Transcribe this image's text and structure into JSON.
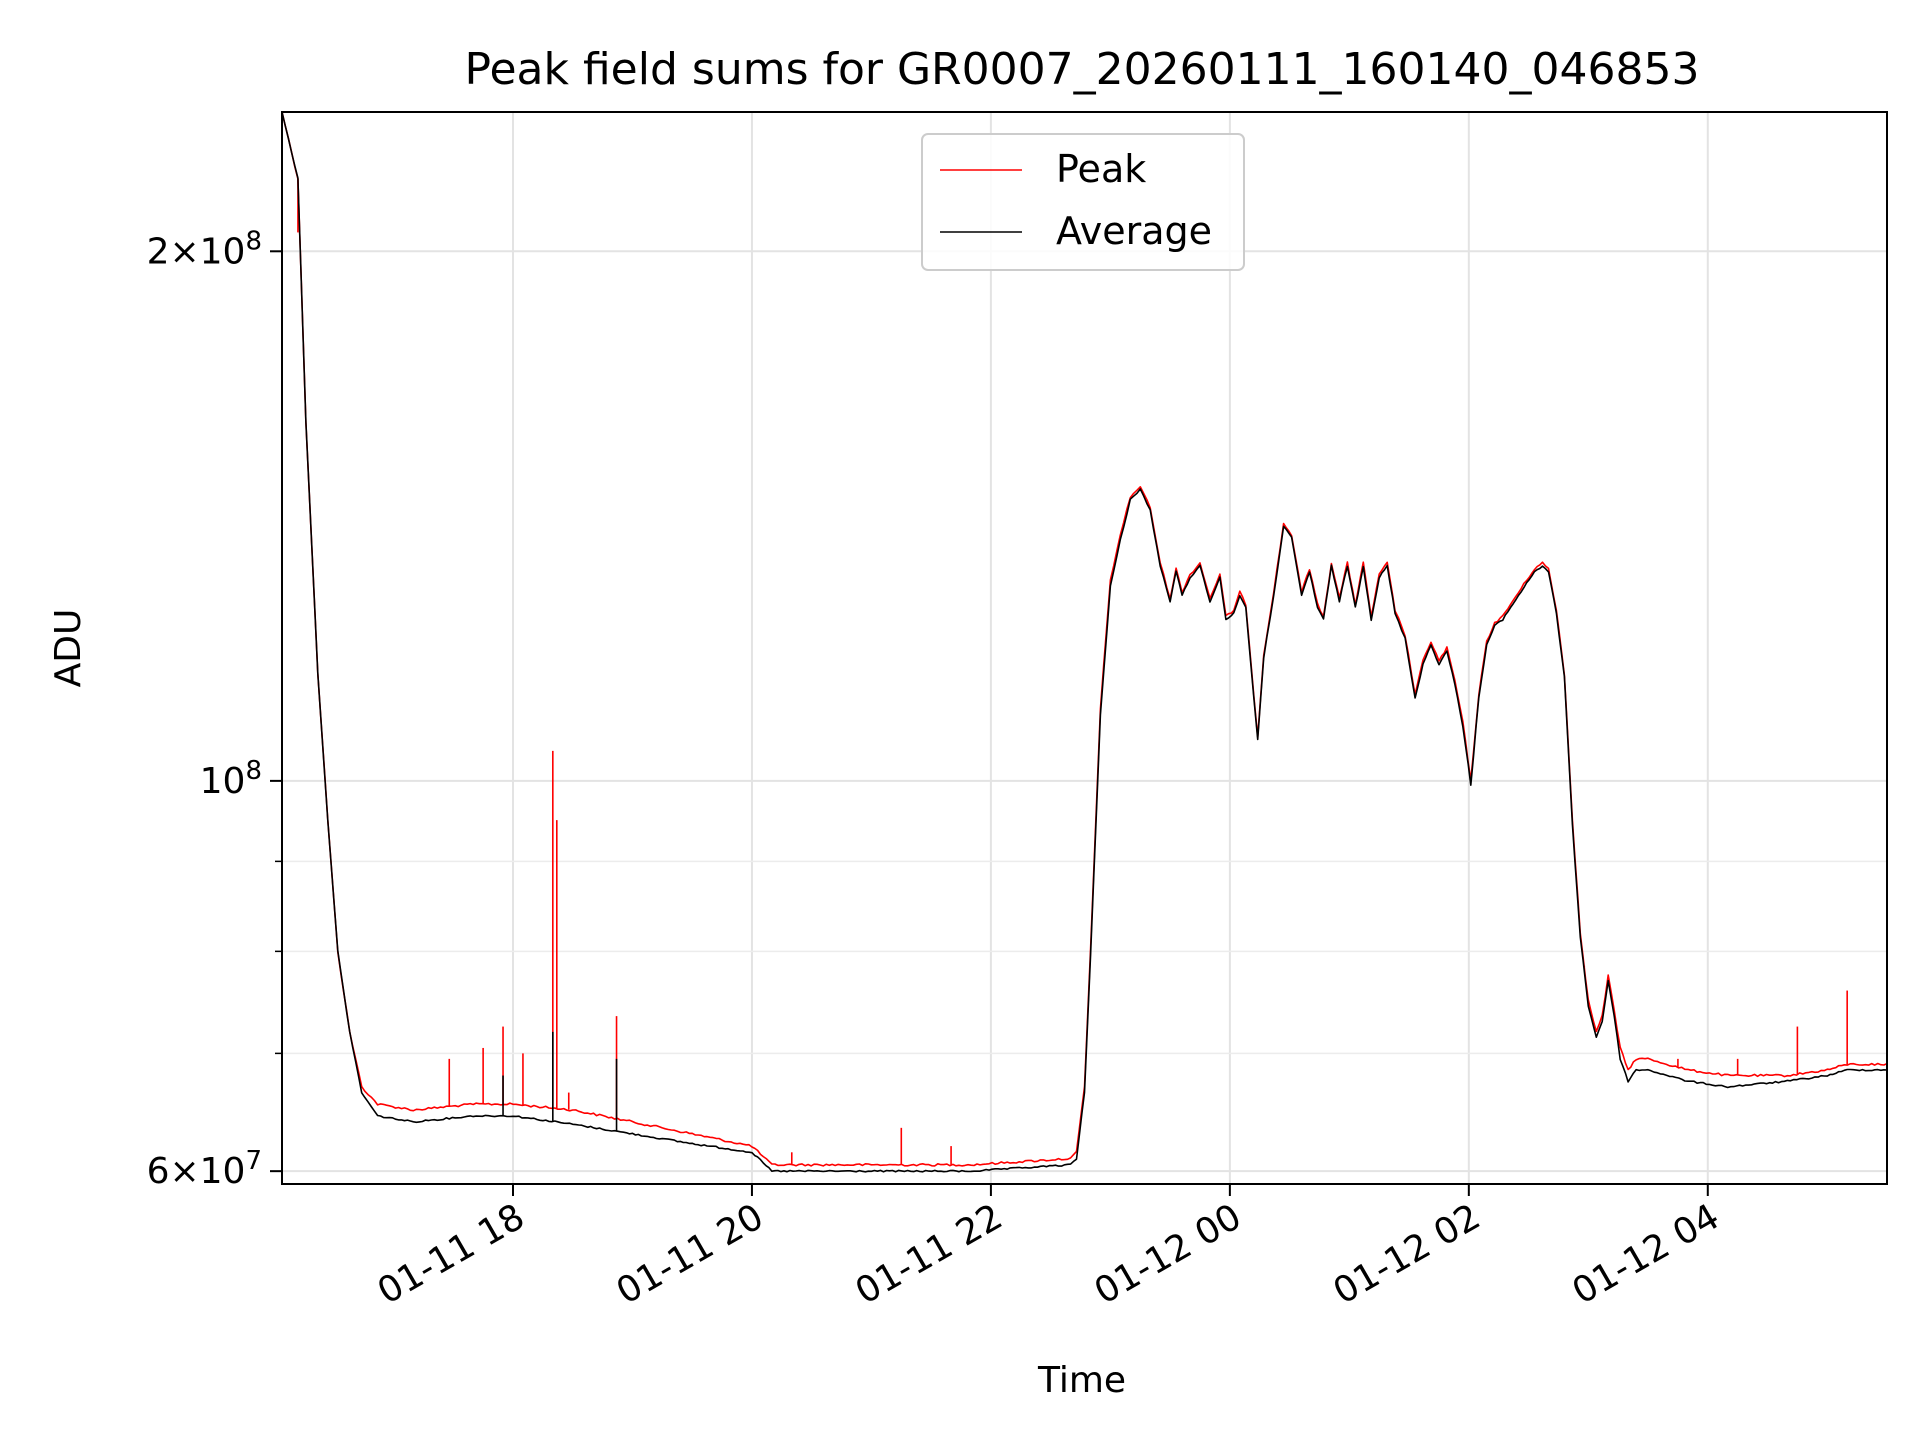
{
  "chart_data": {
    "type": "line",
    "title": "Peak field sums for GR0007_20260111_160140_046853",
    "xlabel": "Time",
    "ylabel": "ADU",
    "yscale": "log",
    "ylim": [
      59000000,
      240000000
    ],
    "xlim": [
      "2026-01-11 16:04",
      "2026-01-12 05:30"
    ],
    "grid": true,
    "legend_position": "top-center",
    "x_ticks": [
      {
        "value": "2026-01-11 18:00",
        "label": "01-11 18"
      },
      {
        "value": "2026-01-11 20:00",
        "label": "01-11 20"
      },
      {
        "value": "2026-01-11 22:00",
        "label": "01-11 22"
      },
      {
        "value": "2026-01-12 00:00",
        "label": "01-12 00"
      },
      {
        "value": "2026-01-12 02:00",
        "label": "01-12 02"
      },
      {
        "value": "2026-01-12 04:00",
        "label": "01-12 04"
      }
    ],
    "y_ticks": [
      {
        "value": 60000000,
        "base": "6",
        "exp": "7"
      },
      {
        "value": 100000000,
        "base": "",
        "exp": "8"
      },
      {
        "value": 200000000,
        "base": "2",
        "exp": "8"
      }
    ],
    "y_minor_ticks": [
      70000000,
      80000000,
      90000000
    ],
    "series": [
      {
        "name": "Peak",
        "color": "#ff0000",
        "base_points": [
          [
            "2026-01-11 16:04",
            240000000
          ],
          [
            "2026-01-11 16:12",
            220000000
          ],
          [
            "2026-01-11 16:16",
            160000000
          ],
          [
            "2026-01-11 16:22",
            115000000
          ],
          [
            "2026-01-11 16:27",
            95000000
          ],
          [
            "2026-01-11 16:32",
            80000000
          ],
          [
            "2026-01-11 16:38",
            72000000
          ],
          [
            "2026-01-11 16:44",
            67000000
          ],
          [
            "2026-01-11 16:52",
            65500000
          ],
          [
            "2026-01-11 17:10",
            65000000
          ],
          [
            "2026-01-11 17:40",
            65500000
          ],
          [
            "2026-01-11 18:00",
            65500000
          ],
          [
            "2026-01-11 18:30",
            65000000
          ],
          [
            "2026-01-11 19:00",
            64000000
          ],
          [
            "2026-01-11 19:30",
            63000000
          ],
          [
            "2026-01-11 20:00",
            62000000
          ],
          [
            "2026-01-11 20:10",
            60500000
          ],
          [
            "2026-01-11 21:00",
            60500000
          ],
          [
            "2026-01-11 21:50",
            60500000
          ],
          [
            "2026-01-11 22:40",
            61000000
          ],
          [
            "2026-01-11 22:43",
            61500000
          ],
          [
            "2026-01-11 22:47",
            67000000
          ],
          [
            "2026-01-11 22:50",
            80000000
          ],
          [
            "2026-01-11 22:55",
            110000000
          ],
          [
            "2026-01-11 23:00",
            130000000
          ],
          [
            "2026-01-11 23:05",
            138000000
          ],
          [
            "2026-01-11 23:10",
            145000000
          ],
          [
            "2026-01-11 23:15",
            147000000
          ],
          [
            "2026-01-11 23:20",
            143000000
          ],
          [
            "2026-01-11 23:25",
            133000000
          ],
          [
            "2026-01-11 23:30",
            127000000
          ],
          [
            "2026-01-11 23:33",
            132000000
          ],
          [
            "2026-01-11 23:36",
            128000000
          ],
          [
            "2026-01-11 23:40",
            131000000
          ],
          [
            "2026-01-11 23:45",
            133000000
          ],
          [
            "2026-01-11 23:50",
            127000000
          ],
          [
            "2026-01-11 23:55",
            131000000
          ],
          [
            "2026-01-11 23:58",
            124000000
          ],
          [
            "2026-01-12 00:02",
            125000000
          ],
          [
            "2026-01-12 00:05",
            128000000
          ],
          [
            "2026-01-12 00:08",
            126000000
          ],
          [
            "2026-01-12 00:12",
            112000000
          ],
          [
            "2026-01-12 00:14",
            106000000
          ],
          [
            "2026-01-12 00:17",
            118000000
          ],
          [
            "2026-01-12 00:22",
            128000000
          ],
          [
            "2026-01-12 00:27",
            140000000
          ],
          [
            "2026-01-12 00:31",
            138000000
          ],
          [
            "2026-01-12 00:36",
            128000000
          ],
          [
            "2026-01-12 00:40",
            132000000
          ],
          [
            "2026-01-12 00:44",
            126000000
          ],
          [
            "2026-01-12 00:47",
            124000000
          ],
          [
            "2026-01-12 00:51",
            133000000
          ],
          [
            "2026-01-12 00:55",
            127000000
          ],
          [
            "2026-01-12 00:59",
            133000000
          ],
          [
            "2026-01-12 01:03",
            126000000
          ],
          [
            "2026-01-12 01:07",
            133000000
          ],
          [
            "2026-01-12 01:11",
            124000000
          ],
          [
            "2026-01-12 01:15",
            131000000
          ],
          [
            "2026-01-12 01:19",
            133000000
          ],
          [
            "2026-01-12 01:23",
            125000000
          ],
          [
            "2026-01-12 01:28",
            121000000
          ],
          [
            "2026-01-12 01:33",
            112000000
          ],
          [
            "2026-01-12 01:37",
            117000000
          ],
          [
            "2026-01-12 01:41",
            120000000
          ],
          [
            "2026-01-12 01:45",
            117000000
          ],
          [
            "2026-01-12 01:49",
            119000000
          ],
          [
            "2026-01-12 01:53",
            114000000
          ],
          [
            "2026-01-12 01:57",
            108000000
          ],
          [
            "2026-01-12 02:01",
            100000000
          ],
          [
            "2026-01-12 02:05",
            112000000
          ],
          [
            "2026-01-12 02:09",
            120000000
          ],
          [
            "2026-01-12 02:13",
            123000000
          ],
          [
            "2026-01-12 02:17",
            124000000
          ],
          [
            "2026-01-12 02:21",
            126000000
          ],
          [
            "2026-01-12 02:25",
            128000000
          ],
          [
            "2026-01-12 02:29",
            130000000
          ],
          [
            "2026-01-12 02:33",
            132000000
          ],
          [
            "2026-01-12 02:37",
            133000000
          ],
          [
            "2026-01-12 02:40",
            132000000
          ],
          [
            "2026-01-12 02:44",
            125000000
          ],
          [
            "2026-01-12 02:48",
            115000000
          ],
          [
            "2026-01-12 02:52",
            95000000
          ],
          [
            "2026-01-12 02:56",
            82000000
          ],
          [
            "2026-01-12 03:00",
            75000000
          ],
          [
            "2026-01-12 03:04",
            72000000
          ],
          [
            "2026-01-12 03:07",
            73500000
          ],
          [
            "2026-01-12 03:10",
            77500000
          ],
          [
            "2026-01-12 03:13",
            74000000
          ],
          [
            "2026-01-12 03:16",
            70500000
          ],
          [
            "2026-01-12 03:20",
            68500000
          ],
          [
            "2026-01-12 03:24",
            69500000
          ],
          [
            "2026-01-12 03:30",
            69500000
          ],
          [
            "2026-01-12 03:50",
            68500000
          ],
          [
            "2026-01-12 04:10",
            68000000
          ],
          [
            "2026-01-12 04:40",
            68000000
          ],
          [
            "2026-01-12 05:00",
            68500000
          ],
          [
            "2026-01-12 05:10",
            69000000
          ],
          [
            "2026-01-12 05:30",
            69000000
          ]
        ],
        "spikes": [
          [
            "2026-01-11 16:12",
            205000000
          ],
          [
            "2026-01-11 17:28",
            69500000
          ],
          [
            "2026-01-11 17:45",
            70500000
          ],
          [
            "2026-01-11 17:55",
            72500000
          ],
          [
            "2026-01-11 18:05",
            70000000
          ],
          [
            "2026-01-11 18:20",
            104000000
          ],
          [
            "2026-01-11 18:22",
            95000000
          ],
          [
            "2026-01-11 18:28",
            66500000
          ],
          [
            "2026-01-11 18:52",
            73500000
          ],
          [
            "2026-01-11 20:20",
            61500000
          ],
          [
            "2026-01-11 21:15",
            63500000
          ],
          [
            "2026-01-11 21:40",
            62000000
          ],
          [
            "2026-01-12 02:58",
            78500000
          ],
          [
            "2026-01-12 03:45",
            69500000
          ],
          [
            "2026-01-12 04:15",
            69500000
          ],
          [
            "2026-01-12 04:45",
            72500000
          ],
          [
            "2026-01-12 05:10",
            76000000
          ]
        ]
      },
      {
        "name": "Average",
        "color": "#000000",
        "base_points": [
          [
            "2026-01-11 16:04",
            240000000
          ],
          [
            "2026-01-11 16:12",
            220000000
          ],
          [
            "2026-01-11 16:16",
            160000000
          ],
          [
            "2026-01-11 16:22",
            115000000
          ],
          [
            "2026-01-11 16:27",
            95000000
          ],
          [
            "2026-01-11 16:32",
            80000000
          ],
          [
            "2026-01-11 16:38",
            72000000
          ],
          [
            "2026-01-11 16:44",
            66500000
          ],
          [
            "2026-01-11 16:52",
            64500000
          ],
          [
            "2026-01-11 17:10",
            64000000
          ],
          [
            "2026-01-11 17:40",
            64500000
          ],
          [
            "2026-01-11 18:00",
            64500000
          ],
          [
            "2026-01-11 18:30",
            63800000
          ],
          [
            "2026-01-11 19:00",
            63000000
          ],
          [
            "2026-01-11 19:30",
            62200000
          ],
          [
            "2026-01-11 20:00",
            61500000
          ],
          [
            "2026-01-11 20:10",
            60000000
          ],
          [
            "2026-01-11 21:00",
            60000000
          ],
          [
            "2026-01-11 21:50",
            60000000
          ],
          [
            "2026-01-11 22:40",
            60500000
          ],
          [
            "2026-01-11 22:43",
            61000000
          ],
          [
            "2026-01-11 22:47",
            66500000
          ],
          [
            "2026-01-11 22:50",
            79500000
          ],
          [
            "2026-01-11 22:55",
            109000000
          ],
          [
            "2026-01-11 23:00",
            129000000
          ],
          [
            "2026-01-11 23:05",
            137000000
          ],
          [
            "2026-01-11 23:10",
            144500000
          ],
          [
            "2026-01-11 23:15",
            146500000
          ],
          [
            "2026-01-11 23:20",
            142500000
          ],
          [
            "2026-01-11 23:25",
            132500000
          ],
          [
            "2026-01-11 23:30",
            126500000
          ],
          [
            "2026-01-11 23:33",
            131500000
          ],
          [
            "2026-01-11 23:36",
            127500000
          ],
          [
            "2026-01-11 23:40",
            130500000
          ],
          [
            "2026-01-11 23:45",
            132500000
          ],
          [
            "2026-01-11 23:50",
            126500000
          ],
          [
            "2026-01-11 23:55",
            130500000
          ],
          [
            "2026-01-11 23:58",
            123500000
          ],
          [
            "2026-01-12 00:02",
            124500000
          ],
          [
            "2026-01-12 00:05",
            127500000
          ],
          [
            "2026-01-12 00:08",
            125500000
          ],
          [
            "2026-01-12 00:12",
            111500000
          ],
          [
            "2026-01-12 00:14",
            105500000
          ],
          [
            "2026-01-12 00:17",
            117500000
          ],
          [
            "2026-01-12 00:22",
            127500000
          ],
          [
            "2026-01-12 00:27",
            139500000
          ],
          [
            "2026-01-12 00:31",
            137500000
          ],
          [
            "2026-01-12 00:36",
            127500000
          ],
          [
            "2026-01-12 00:40",
            131500000
          ],
          [
            "2026-01-12 00:44",
            125500000
          ],
          [
            "2026-01-12 00:47",
            123500000
          ],
          [
            "2026-01-12 00:51",
            132500000
          ],
          [
            "2026-01-12 00:55",
            126500000
          ],
          [
            "2026-01-12 00:59",
            132500000
          ],
          [
            "2026-01-12 01:03",
            125500000
          ],
          [
            "2026-01-12 01:07",
            132500000
          ],
          [
            "2026-01-12 01:11",
            123500000
          ],
          [
            "2026-01-12 01:15",
            130500000
          ],
          [
            "2026-01-12 01:19",
            132500000
          ],
          [
            "2026-01-12 01:23",
            124500000
          ],
          [
            "2026-01-12 01:28",
            120500000
          ],
          [
            "2026-01-12 01:33",
            111500000
          ],
          [
            "2026-01-12 01:37",
            116500000
          ],
          [
            "2026-01-12 01:41",
            119500000
          ],
          [
            "2026-01-12 01:45",
            116500000
          ],
          [
            "2026-01-12 01:49",
            118500000
          ],
          [
            "2026-01-12 01:53",
            113500000
          ],
          [
            "2026-01-12 01:57",
            107500000
          ],
          [
            "2026-01-12 02:01",
            99500000
          ],
          [
            "2026-01-12 02:05",
            111500000
          ],
          [
            "2026-01-12 02:09",
            119500000
          ],
          [
            "2026-01-12 02:13",
            122500000
          ],
          [
            "2026-01-12 02:17",
            123500000
          ],
          [
            "2026-01-12 02:21",
            125500000
          ],
          [
            "2026-01-12 02:25",
            127500000
          ],
          [
            "2026-01-12 02:29",
            129500000
          ],
          [
            "2026-01-12 02:33",
            131500000
          ],
          [
            "2026-01-12 02:37",
            132500000
          ],
          [
            "2026-01-12 02:40",
            131500000
          ],
          [
            "2026-01-12 02:44",
            124500000
          ],
          [
            "2026-01-12 02:48",
            114500000
          ],
          [
            "2026-01-12 02:52",
            94500000
          ],
          [
            "2026-01-12 02:56",
            81500000
          ],
          [
            "2026-01-12 03:00",
            74500000
          ],
          [
            "2026-01-12 03:04",
            71500000
          ],
          [
            "2026-01-12 03:07",
            73000000
          ],
          [
            "2026-01-12 03:10",
            77000000
          ],
          [
            "2026-01-12 03:13",
            73500000
          ],
          [
            "2026-01-12 03:16",
            69500000
          ],
          [
            "2026-01-12 03:20",
            67500000
          ],
          [
            "2026-01-12 03:24",
            68500000
          ],
          [
            "2026-01-12 03:30",
            68500000
          ],
          [
            "2026-01-12 03:50",
            67500000
          ],
          [
            "2026-01-12 04:10",
            67000000
          ],
          [
            "2026-01-12 04:40",
            67500000
          ],
          [
            "2026-01-12 05:00",
            68000000
          ],
          [
            "2026-01-12 05:10",
            68500000
          ],
          [
            "2026-01-12 05:30",
            68500000
          ]
        ],
        "spikes": [
          [
            "2026-01-11 18:20",
            72000000
          ],
          [
            "2026-01-11 18:52",
            69500000
          ],
          [
            "2026-01-11 17:55",
            68000000
          ]
        ]
      }
    ]
  }
}
